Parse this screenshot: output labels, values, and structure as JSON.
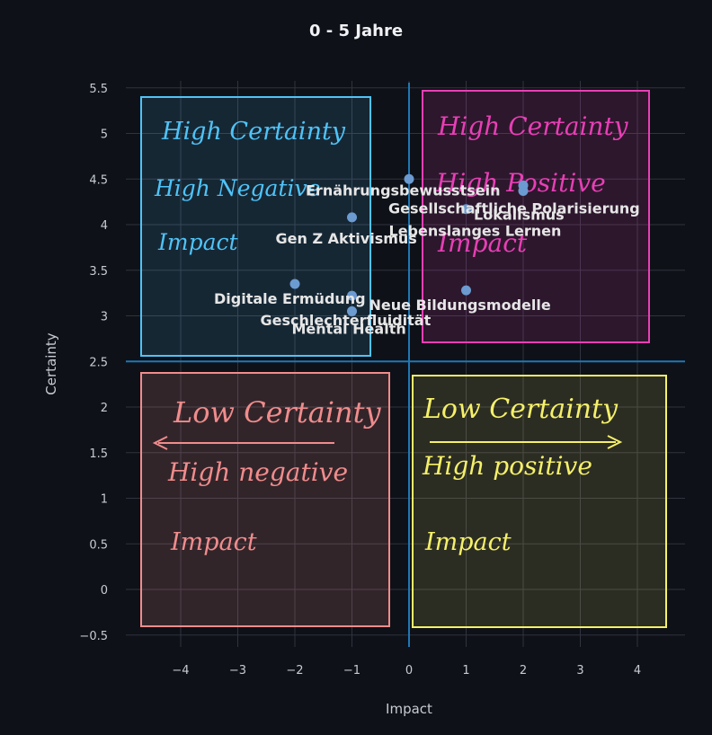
{
  "chart_data": {
    "type": "scatter",
    "title": "0 - 5 Jahre",
    "xlabel": "Impact",
    "ylabel": "Certainty",
    "xlim": [
      -4.8,
      4.8
    ],
    "ylim": [
      -0.5,
      5.6
    ],
    "x_ticks": [
      -4,
      -3,
      -2,
      -1,
      0,
      1,
      2,
      3,
      4
    ],
    "x_tick_labels": [
      "−4",
      "−3",
      "−2",
      "−1",
      "0",
      "1",
      "2",
      "3",
      "4"
    ],
    "y_ticks": [
      -0.5,
      0,
      0.5,
      1,
      1.5,
      2,
      2.5,
      3,
      3.5,
      4,
      4.5,
      5,
      5.5
    ],
    "y_tick_labels": [
      "−0.5",
      "0",
      "0.5",
      "1",
      "1.5",
      "2",
      "2.5",
      "3",
      "3.5",
      "4",
      "4.5",
      "5",
      "5.5"
    ],
    "grid": true,
    "points": [
      {
        "label": "Ernährungsbewusstsein",
        "x": 0,
        "y": 4.5
      },
      {
        "label": "Gesellschaftliche Polarisierung",
        "x": 2,
        "y": 4.43
      },
      {
        "label": "Lokalismus",
        "x": 2,
        "y": 4.37
      },
      {
        "label": "Lebenslanges Lernen",
        "x": 1,
        "y": 4.17
      },
      {
        "label": "Gen Z Aktivismus",
        "x": -1,
        "y": 4.08
      },
      {
        "label": "Digitale Ermüdung",
        "x": -2,
        "y": 3.35
      },
      {
        "label": "Geschlechterfluidität",
        "x": -1,
        "y": 3.22
      },
      {
        "label": "Neue Bildungsmodelle",
        "x": 1,
        "y": 3.28
      },
      {
        "label": "Mental Health",
        "x": -1,
        "y": 3.05
      }
    ],
    "axis_lines": {
      "x": 0,
      "y": 2.5
    },
    "annotations": [
      {
        "lines": [
          "High Certainty",
          "High Negative",
          "Impact"
        ],
        "color": "#4fc3f7"
      },
      {
        "lines": [
          "High Certainty",
          "High Positive",
          "Impact"
        ],
        "color": "#e83fb5"
      },
      {
        "lines": [
          "Low Certainty",
          "High negative",
          "Impact"
        ],
        "color": "#f08c8c"
      },
      {
        "lines": [
          "Low Certainty",
          "High positive",
          "Impact"
        ],
        "color": "#f5f06a"
      }
    ],
    "colors": {
      "background": "#0e1117",
      "grid": "#31333f",
      "tick_text": "#c8cbd3",
      "point": "#6b9bd1",
      "axis_line": "#1f77b4"
    }
  }
}
